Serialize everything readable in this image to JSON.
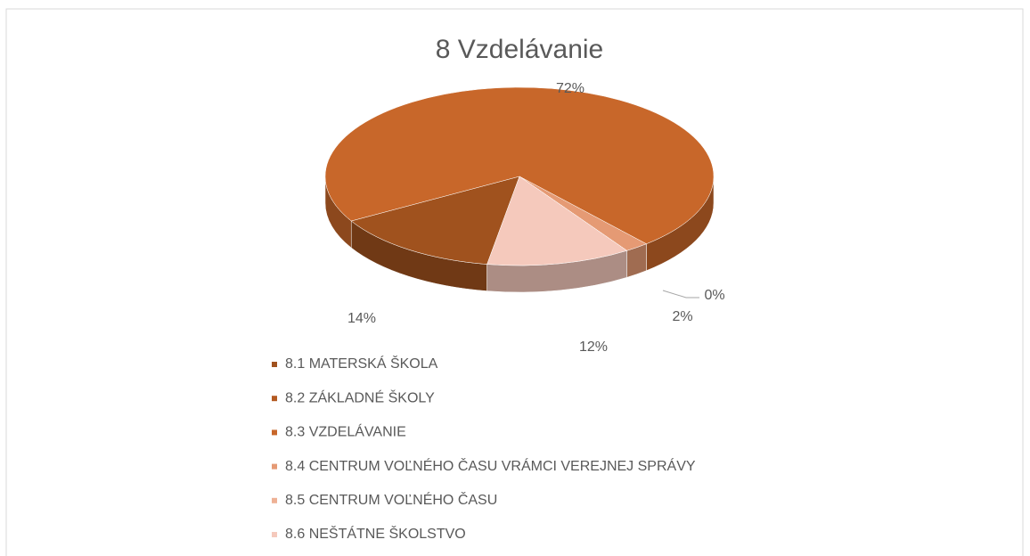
{
  "chart_data": {
    "type": "pie",
    "title": "8 Vzdelávanie",
    "categories": [
      "8.1 MATERSKÁ ŠKOLA",
      "8.2 ZÁKLADNÉ ŠKOLY",
      "8.3 VZDELÁVANIE",
      "8.4 CENTRUM VOĽNÉHO ČASU VRÁMCI VEREJNEJ SPRÁVY",
      "8.5 CENTRUM VOĽNÉHO ČASU",
      "8.6 NEŠTÁTNE ŠKOLSTVO"
    ],
    "values": [
      14,
      null,
      72,
      2,
      0,
      12
    ],
    "value_labels": [
      "14%",
      null,
      "72%",
      "2%",
      "0%",
      "12%"
    ],
    "colors": [
      "#a0521e",
      "#b45a22",
      "#c8672a",
      "#e59a74",
      "#eeb195",
      "#f5c9bc"
    ],
    "legend": "bottom"
  }
}
